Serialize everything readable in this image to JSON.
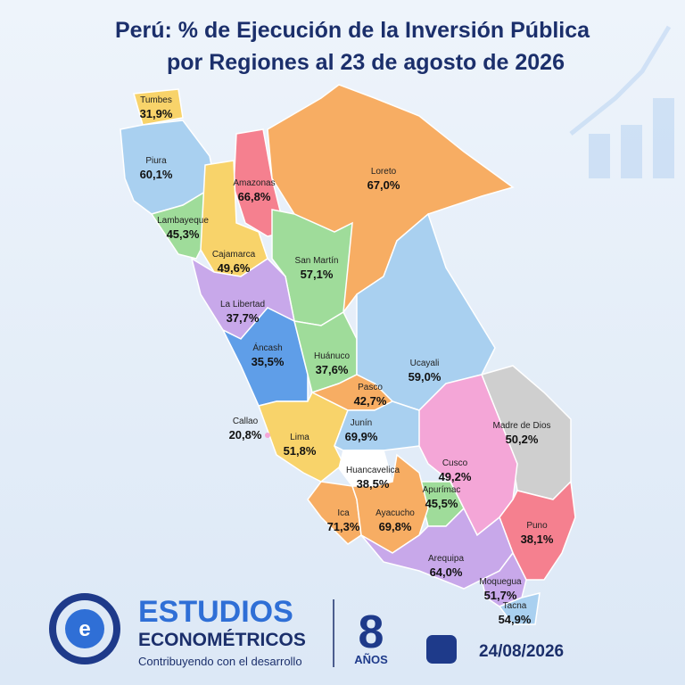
{
  "header": {
    "title_lines": [
      "Perú: % de Ejecución de la Inversión Pública",
      "por Regiones al 23 de agosto de 2026"
    ]
  },
  "regions": [
    {
      "name": "Tumbes",
      "value": "31,9%"
    },
    {
      "name": "Piura",
      "value": "60,1%"
    },
    {
      "name": "Lambayeque",
      "value": "45,3%"
    },
    {
      "name": "Amazonas",
      "value": "66,8%"
    },
    {
      "name": "Cajamarca",
      "value": "49,6%"
    },
    {
      "name": "Loreto",
      "value": "67,0%"
    },
    {
      "name": "San Martín",
      "value": "57,1%"
    },
    {
      "name": "La Libertad",
      "value": "37,7%"
    },
    {
      "name": "Áncash",
      "value": "35,5%"
    },
    {
      "name": "Huánuco",
      "value": "37,6%"
    },
    {
      "name": "Ucayali",
      "value": "59,0%"
    },
    {
      "name": "Pasco",
      "value": "42,7%"
    },
    {
      "name": "Callao",
      "value": "20,8%"
    },
    {
      "name": "Lima",
      "value": "51,8%"
    },
    {
      "name": "Junín",
      "value": "69,9%"
    },
    {
      "name": "Madre de Dios",
      "value": "50,2%"
    },
    {
      "name": "Huancavelica",
      "value": "38,5%"
    },
    {
      "name": "Cusco",
      "value": "49,2%"
    },
    {
      "name": "Apurímac",
      "value": "45,5%"
    },
    {
      "name": "Ica",
      "value": "71,3%"
    },
    {
      "name": "Ayacucho",
      "value": "69,8%"
    },
    {
      "name": "Puno",
      "value": "38,1%"
    },
    {
      "name": "Arequipa",
      "value": "64,0%"
    },
    {
      "name": "Moquegua",
      "value": "51,7%"
    },
    {
      "name": "Tacna",
      "value": "54,9%"
    }
  ],
  "footer": {
    "brand_line1": "ESTUDIOS",
    "brand_line2": "ECONOMÉTRICOS",
    "tagline": "Contribuyendo con el desarrollo",
    "years_number": "8",
    "years_label": "AÑOS",
    "date": "24/08/2026"
  }
}
